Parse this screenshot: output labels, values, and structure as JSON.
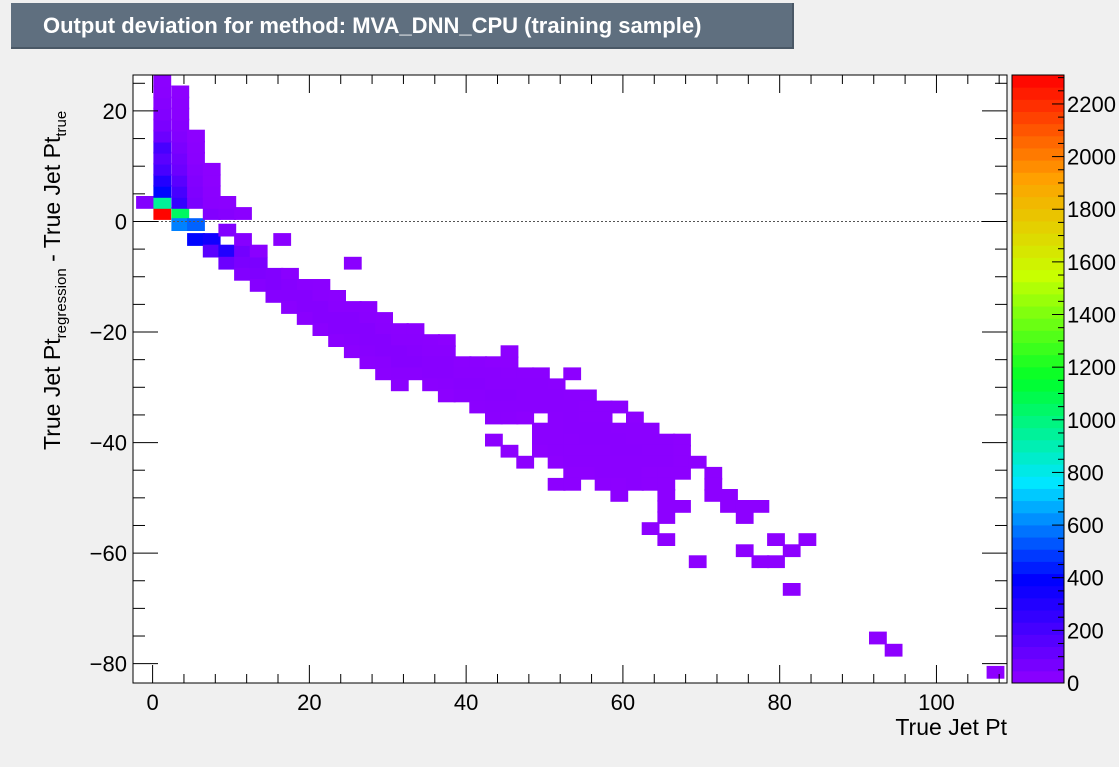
{
  "title": "Output deviation for method: MVA_DNN_CPU (training sample)",
  "chart_data": {
    "type": "heatmap",
    "title": "Output deviation for method: MVA_DNN_CPU (training sample)",
    "xlabel": "True Jet Pt",
    "ylabel": {
      "part1": "True Jet Pt",
      "sub1": "regression",
      "part2": " - True Jet Pt",
      "sub2": "true"
    },
    "xlim": [
      -2.5,
      109
    ],
    "ylim": [
      -83.5,
      26.5
    ],
    "x_ticks": [
      0,
      20,
      40,
      60,
      80,
      100
    ],
    "x_tick_labels": [
      "0",
      "20",
      "40",
      "60",
      "80",
      "100"
    ],
    "y_ticks": [
      20,
      0,
      -20,
      -40,
      -60,
      -80
    ],
    "y_tick_labels": [
      "20",
      "0",
      "−20",
      "−40",
      "−60",
      "−80"
    ],
    "z_range": [
      0,
      2310
    ],
    "z_ticks": [
      0,
      200,
      400,
      600,
      800,
      1000,
      1200,
      1400,
      1600,
      1800,
      2000,
      2200
    ],
    "z_tick_labels": [
      "0",
      "200",
      "400",
      "600",
      "800",
      "1000",
      "1200",
      "1400",
      "1600",
      "1800",
      "2000",
      "2200"
    ],
    "reference_line_y": 0,
    "bin_width": [
      2.2,
      2.2
    ],
    "cells": [
      [
        -1,
        3.5,
        40
      ],
      [
        1.2,
        1.5,
        2300
      ],
      [
        1.2,
        3.5,
        950
      ],
      [
        1.2,
        5.5,
        400
      ],
      [
        1.2,
        7.5,
        300
      ],
      [
        1.2,
        9.5,
        200
      ],
      [
        1.2,
        11.5,
        150
      ],
      [
        1.2,
        13.5,
        200
      ],
      [
        1.2,
        15.5,
        100
      ],
      [
        1.2,
        17.5,
        60
      ],
      [
        1.2,
        19.5,
        40
      ],
      [
        1.2,
        21.5,
        30
      ],
      [
        1.2,
        23.5,
        20
      ],
      [
        1.2,
        25.5,
        15
      ],
      [
        3.5,
        1.5,
        1050
      ],
      [
        3.5,
        -0.5,
        600
      ],
      [
        3.5,
        3.5,
        250
      ],
      [
        3.5,
        5.5,
        200
      ],
      [
        3.5,
        7.5,
        150
      ],
      [
        3.5,
        9.5,
        100
      ],
      [
        3.5,
        11.5,
        80
      ],
      [
        3.5,
        13.5,
        60
      ],
      [
        3.5,
        15.5,
        40
      ],
      [
        3.5,
        17.5,
        30
      ],
      [
        3.5,
        19.5,
        20
      ],
      [
        3.5,
        21.5,
        15
      ],
      [
        3.5,
        23.5,
        10
      ],
      [
        5.5,
        -0.5,
        550
      ],
      [
        5.5,
        -3.2,
        400
      ],
      [
        5.5,
        3.5,
        60
      ],
      [
        5.5,
        5.5,
        50
      ],
      [
        5.5,
        7.5,
        40
      ],
      [
        5.5,
        9.5,
        30
      ],
      [
        5.5,
        11.5,
        20
      ],
      [
        5.5,
        13.5,
        15
      ],
      [
        5.5,
        15.5,
        10
      ],
      [
        7.5,
        -3.2,
        350
      ],
      [
        7.5,
        -5.3,
        150
      ],
      [
        7.5,
        1.5,
        40
      ],
      [
        7.5,
        3.5,
        20
      ],
      [
        7.5,
        5.5,
        15
      ],
      [
        7.5,
        7.5,
        10
      ],
      [
        7.5,
        9.5,
        10
      ],
      [
        9.5,
        -5.3,
        300
      ],
      [
        9.5,
        -7.5,
        100
      ],
      [
        9.5,
        -1.5,
        40
      ],
      [
        9.5,
        1.5,
        30
      ],
      [
        9.5,
        3.5,
        15
      ],
      [
        11.5,
        -5.3,
        80
      ],
      [
        11.5,
        -7.5,
        60
      ],
      [
        11.5,
        -9.5,
        40
      ],
      [
        11.5,
        -3.2,
        30
      ],
      [
        11.5,
        1.5,
        15
      ],
      [
        13.5,
        -7.5,
        60
      ],
      [
        13.5,
        -9.5,
        50
      ],
      [
        13.5,
        -11.5,
        30
      ],
      [
        13.5,
        -5.3,
        20
      ],
      [
        15.5,
        -9.5,
        40
      ],
      [
        15.5,
        -11.5,
        40
      ],
      [
        15.5,
        -13.5,
        30
      ],
      [
        16.5,
        -3.2,
        20
      ],
      [
        17.5,
        -9.5,
        20
      ],
      [
        17.5,
        -11.5,
        30
      ],
      [
        17.5,
        -13.5,
        30
      ],
      [
        17.5,
        -15.5,
        20
      ],
      [
        19.5,
        -11.5,
        20
      ],
      [
        19.5,
        -13.5,
        30
      ],
      [
        19.5,
        -15.5,
        30
      ],
      [
        19.5,
        -17.5,
        20
      ],
      [
        21.5,
        -11.5,
        15
      ],
      [
        21.5,
        -13.5,
        20
      ],
      [
        21.5,
        -15.5,
        30
      ],
      [
        21.5,
        -17.5,
        30
      ],
      [
        21.5,
        -19.5,
        20
      ],
      [
        23.5,
        -13.5,
        15
      ],
      [
        23.5,
        -15.5,
        20
      ],
      [
        23.5,
        -17.5,
        30
      ],
      [
        23.5,
        -19.5,
        30
      ],
      [
        23.5,
        -21.5,
        20
      ],
      [
        25.5,
        -15.5,
        20
      ],
      [
        25.5,
        -17.5,
        30
      ],
      [
        25.5,
        -19.5,
        30
      ],
      [
        25.5,
        -21.5,
        25
      ],
      [
        25.5,
        -23.5,
        15
      ],
      [
        27.5,
        -15.5,
        15
      ],
      [
        27.5,
        -17.5,
        20
      ],
      [
        27.5,
        -19.5,
        30
      ],
      [
        27.5,
        -21.5,
        30
      ],
      [
        27.5,
        -23.5,
        25
      ],
      [
        27.5,
        -25.5,
        15
      ],
      [
        25.5,
        -7.5,
        20
      ],
      [
        29.5,
        -17.5,
        15
      ],
      [
        29.5,
        -19.5,
        20
      ],
      [
        29.5,
        -21.5,
        30
      ],
      [
        29.5,
        -23.5,
        30
      ],
      [
        29.5,
        -25.5,
        20
      ],
      [
        29.5,
        -27.5,
        15
      ],
      [
        31.5,
        -19.5,
        15
      ],
      [
        31.5,
        -21.5,
        20
      ],
      [
        31.5,
        -23.5,
        30
      ],
      [
        31.5,
        -25.5,
        30
      ],
      [
        31.5,
        -27.5,
        20
      ],
      [
        31.5,
        -29.5,
        15
      ],
      [
        33.5,
        -19.5,
        15
      ],
      [
        33.5,
        -21.5,
        20
      ],
      [
        33.5,
        -23.5,
        25
      ],
      [
        33.5,
        -25.5,
        30
      ],
      [
        33.5,
        -27.5,
        20
      ],
      [
        35.5,
        -21.5,
        15
      ],
      [
        35.5,
        -23.5,
        20
      ],
      [
        35.5,
        -25.5,
        25
      ],
      [
        35.5,
        -27.5,
        25
      ],
      [
        35.5,
        -29.5,
        15
      ],
      [
        37.5,
        -21.5,
        10
      ],
      [
        37.5,
        -23.5,
        20
      ],
      [
        37.5,
        -25.5,
        25
      ],
      [
        37.5,
        -27.5,
        25
      ],
      [
        37.5,
        -29.5,
        20
      ],
      [
        37.5,
        -31.5,
        10
      ],
      [
        39.5,
        -25.5,
        15
      ],
      [
        39.5,
        -27.5,
        20
      ],
      [
        39.5,
        -29.5,
        25
      ],
      [
        39.5,
        -31.5,
        20
      ],
      [
        41.5,
        -25.5,
        15
      ],
      [
        41.5,
        -27.5,
        20
      ],
      [
        41.5,
        -29.5,
        25
      ],
      [
        41.5,
        -31.5,
        20
      ],
      [
        41.5,
        -33.5,
        15
      ],
      [
        43.5,
        -25.5,
        10
      ],
      [
        43.5,
        -27.5,
        20
      ],
      [
        43.5,
        -29.5,
        20
      ],
      [
        43.5,
        -31.5,
        25
      ],
      [
        43.5,
        -33.5,
        20
      ],
      [
        43.5,
        -35.5,
        15
      ],
      [
        45.5,
        -25.5,
        10
      ],
      [
        45.5,
        -27.5,
        15
      ],
      [
        45.5,
        -29.5,
        20
      ],
      [
        45.5,
        -31.5,
        25
      ],
      [
        45.5,
        -33.5,
        20
      ],
      [
        45.5,
        -35.5,
        15
      ],
      [
        47.5,
        -27.5,
        15
      ],
      [
        47.5,
        -29.5,
        20
      ],
      [
        47.5,
        -31.5,
        20
      ],
      [
        47.5,
        -33.5,
        20
      ],
      [
        47.5,
        -35.5,
        10
      ],
      [
        43.5,
        -39.5,
        10
      ],
      [
        45.5,
        -41.5,
        10
      ],
      [
        47.5,
        -43.5,
        10
      ],
      [
        45.5,
        -23.5,
        10
      ],
      [
        49.5,
        -27.5,
        15
      ],
      [
        49.5,
        -29.5,
        20
      ],
      [
        49.5,
        -31.5,
        20
      ],
      [
        49.5,
        -33.5,
        20
      ],
      [
        49.5,
        -37.5,
        15
      ],
      [
        49.5,
        -39.5,
        15
      ],
      [
        49.5,
        -41.5,
        10
      ],
      [
        51.5,
        -29.5,
        15
      ],
      [
        51.5,
        -31.5,
        20
      ],
      [
        51.5,
        -33.5,
        20
      ],
      [
        51.5,
        -35.5,
        15
      ],
      [
        51.5,
        -37.5,
        15
      ],
      [
        51.5,
        -39.5,
        15
      ],
      [
        51.5,
        -41.5,
        15
      ],
      [
        51.5,
        -43.5,
        10
      ],
      [
        51.5,
        -47.5,
        10
      ],
      [
        53.5,
        -27.5,
        10
      ],
      [
        53.5,
        -31.5,
        15
      ],
      [
        53.5,
        -33.5,
        20
      ],
      [
        53.5,
        -35.5,
        20
      ],
      [
        53.5,
        -37.5,
        20
      ],
      [
        53.5,
        -39.5,
        15
      ],
      [
        53.5,
        -41.5,
        15
      ],
      [
        53.5,
        -43.5,
        15
      ],
      [
        53.5,
        -45.5,
        10
      ],
      [
        53.5,
        -47.5,
        10
      ],
      [
        55.5,
        -31.5,
        15
      ],
      [
        55.5,
        -33.5,
        15
      ],
      [
        55.5,
        -35.5,
        15
      ],
      [
        55.5,
        -37.5,
        20
      ],
      [
        55.5,
        -39.5,
        20
      ],
      [
        55.5,
        -41.5,
        15
      ],
      [
        55.5,
        -43.5,
        15
      ],
      [
        55.5,
        -45.5,
        10
      ],
      [
        57.5,
        -33.5,
        15
      ],
      [
        57.5,
        -35.5,
        15
      ],
      [
        57.5,
        -37.5,
        20
      ],
      [
        57.5,
        -39.5,
        20
      ],
      [
        57.5,
        -41.5,
        15
      ],
      [
        57.5,
        -43.5,
        15
      ],
      [
        57.5,
        -45.5,
        15
      ],
      [
        57.5,
        -47.5,
        10
      ],
      [
        59.5,
        -33.5,
        15
      ],
      [
        59.5,
        -37.5,
        15
      ],
      [
        59.5,
        -39.5,
        20
      ],
      [
        59.5,
        -41.5,
        20
      ],
      [
        59.5,
        -43.5,
        15
      ],
      [
        59.5,
        -45.5,
        15
      ],
      [
        59.5,
        -47.5,
        10
      ],
      [
        59.5,
        -49.5,
        10
      ],
      [
        61.5,
        -35.5,
        10
      ],
      [
        61.5,
        -37.5,
        15
      ],
      [
        61.5,
        -39.5,
        15
      ],
      [
        61.5,
        -41.5,
        20
      ],
      [
        61.5,
        -43.5,
        15
      ],
      [
        61.5,
        -45.5,
        15
      ],
      [
        61.5,
        -47.5,
        15
      ],
      [
        63.5,
        -37.5,
        15
      ],
      [
        63.5,
        -39.5,
        15
      ],
      [
        63.5,
        -41.5,
        15
      ],
      [
        63.5,
        -43.5,
        15
      ],
      [
        63.5,
        -45.5,
        10
      ],
      [
        63.5,
        -47.5,
        10
      ],
      [
        63.5,
        -55.5,
        10
      ],
      [
        65.5,
        -39.5,
        15
      ],
      [
        65.5,
        -41.5,
        15
      ],
      [
        65.5,
        -43.5,
        15
      ],
      [
        65.5,
        -45.5,
        10
      ],
      [
        65.5,
        -47.5,
        10
      ],
      [
        65.5,
        -49.5,
        10
      ],
      [
        65.5,
        -51.5,
        10
      ],
      [
        65.5,
        -53.5,
        10
      ],
      [
        65.5,
        -57.5,
        10
      ],
      [
        67.5,
        -39.5,
        10
      ],
      [
        67.5,
        -41.5,
        10
      ],
      [
        67.5,
        -43.5,
        10
      ],
      [
        67.5,
        -45.5,
        10
      ],
      [
        67.5,
        -51.5,
        10
      ],
      [
        69.5,
        -43.5,
        10
      ],
      [
        69.5,
        -61.5,
        10
      ],
      [
        71.5,
        -45.5,
        10
      ],
      [
        71.5,
        -47.5,
        10
      ],
      [
        71.5,
        -49.5,
        10
      ],
      [
        73.5,
        -49.5,
        10
      ],
      [
        73.5,
        -51.5,
        10
      ],
      [
        75.5,
        -51.5,
        10
      ],
      [
        75.5,
        -53.5,
        10
      ],
      [
        75.5,
        -59.5,
        10
      ],
      [
        77.5,
        -51.5,
        10
      ],
      [
        77.5,
        -61.5,
        10
      ],
      [
        79.5,
        -61.5,
        10
      ],
      [
        79.5,
        -57.5,
        10
      ],
      [
        81.5,
        -59.5,
        10
      ],
      [
        81.5,
        -66.5,
        10
      ],
      [
        83.5,
        -57.5,
        10
      ],
      [
        92.5,
        -75.3,
        10
      ],
      [
        94.5,
        -77.5,
        10
      ],
      [
        107.5,
        -81.5,
        10
      ]
    ]
  }
}
